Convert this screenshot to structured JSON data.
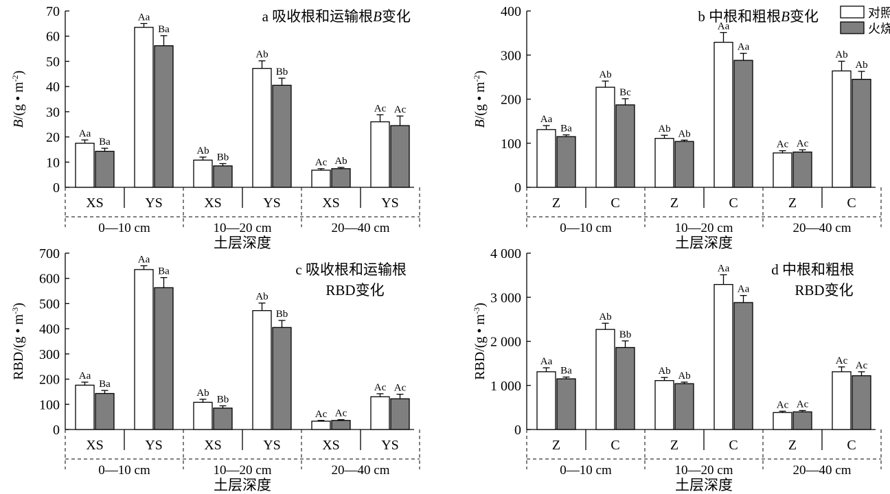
{
  "legend": {
    "control": "对照",
    "fire": "火烧"
  },
  "chart_data": [
    {
      "id": "a",
      "type": "bar",
      "title": "a 吸收根和运输根B变化",
      "title_parts": [
        [
          "a 吸收根和运输根",
          false
        ],
        [
          "B",
          true
        ],
        [
          "变化",
          false
        ]
      ],
      "ylabel_parts": [
        [
          "B",
          true
        ],
        [
          "/(g • m",
          false
        ],
        [
          "-2",
          "sup"
        ],
        [
          ")",
          false
        ]
      ],
      "xlabel": "土层深度",
      "ylim": [
        0,
        70
      ],
      "yticks": [
        0,
        10,
        20,
        30,
        40,
        50,
        60,
        70
      ],
      "ytick_labels": [
        "0",
        "10",
        "20",
        "30",
        "40",
        "50",
        "60",
        "70"
      ],
      "groups": [
        "0—10 cm",
        "10—20 cm",
        "20—40 cm"
      ],
      "categories": [
        "XS",
        "YS",
        "XS",
        "YS",
        "XS",
        "YS"
      ],
      "series": [
        {
          "name": "对照",
          "values": [
            17.5,
            63.5,
            10.8,
            47.2,
            6.8,
            26.0
          ],
          "errors": [
            1.3,
            1.5,
            1.2,
            3.0,
            0.6,
            2.8
          ],
          "labels": [
            "Aa",
            "Aa",
            "Ab",
            "Ab",
            "Ac",
            "Ac"
          ]
        },
        {
          "name": "火烧",
          "values": [
            14.3,
            56.2,
            8.5,
            40.5,
            7.4,
            24.5
          ],
          "errors": [
            1.2,
            4.0,
            0.9,
            2.8,
            0.5,
            3.8
          ],
          "labels": [
            "Ba",
            "Ba",
            "Bb",
            "Bb",
            "Ab",
            "Ac"
          ]
        }
      ],
      "legend": false
    },
    {
      "id": "b",
      "type": "bar",
      "title": "b 中根和粗根B变化",
      "title_parts": [
        [
          "b 中根和粗根",
          false
        ],
        [
          "B",
          true
        ],
        [
          "变化",
          false
        ]
      ],
      "ylabel_parts": [
        [
          "B",
          true
        ],
        [
          "/(g • m",
          false
        ],
        [
          "-2",
          "sup"
        ],
        [
          ")",
          false
        ]
      ],
      "xlabel": "土层深度",
      "ylim": [
        0,
        400
      ],
      "yticks": [
        0,
        100,
        200,
        300,
        400
      ],
      "ytick_labels": [
        "0",
        "100",
        "200",
        "300",
        "400"
      ],
      "groups": [
        "0—10 cm",
        "10—20 cm",
        "20—40 cm"
      ],
      "categories": [
        "Z",
        "C",
        "Z",
        "C",
        "Z",
        "C"
      ],
      "series": [
        {
          "name": "对照",
          "values": [
            131,
            227,
            111,
            329,
            78,
            264
          ],
          "errors": [
            9,
            14,
            7,
            22,
            5,
            22
          ],
          "labels": [
            "Aa",
            "Ab",
            "Ab",
            "Aa",
            "Ac",
            "Ab"
          ]
        },
        {
          "name": "火烧",
          "values": [
            115,
            187,
            104,
            288,
            80,
            245
          ],
          "errors": [
            4,
            14,
            3,
            16,
            5,
            18
          ],
          "labels": [
            "Ba",
            "Bc",
            "Ab",
            "Aa",
            "Ac",
            "Ab"
          ]
        }
      ],
      "legend": true
    },
    {
      "id": "c",
      "type": "bar",
      "title": "c 吸收根和运输根 RBD变化",
      "title_lines": [
        "c 吸收根和运输根",
        "RBD变化"
      ],
      "ylabel_parts": [
        [
          "RBD/(g • m",
          false
        ],
        [
          "-3",
          "sup"
        ],
        [
          ")",
          false
        ]
      ],
      "xlabel": "土层深度",
      "ylim": [
        0,
        700
      ],
      "yticks": [
        0,
        100,
        200,
        300,
        400,
        500,
        600,
        700
      ],
      "ytick_labels": [
        "0",
        "100",
        "200",
        "300",
        "400",
        "500",
        "600",
        "700"
      ],
      "groups": [
        "0—10 cm",
        "10—20 cm",
        "20—40 cm"
      ],
      "categories": [
        "XS",
        "YS",
        "XS",
        "YS",
        "XS",
        "YS"
      ],
      "series": [
        {
          "name": "对照",
          "values": [
            176,
            635,
            108,
            472,
            33,
            130
          ],
          "errors": [
            12,
            15,
            12,
            30,
            3,
            12
          ],
          "labels": [
            "Aa",
            "Aa",
            "Ab",
            "Ab",
            "Ac",
            "Ac"
          ]
        },
        {
          "name": "火烧",
          "values": [
            143,
            563,
            85,
            405,
            36,
            122
          ],
          "errors": [
            12,
            40,
            9,
            28,
            3,
            18
          ],
          "labels": [
            "Ba",
            "Ba",
            "Bb",
            "Bb",
            "Ac",
            "Ac"
          ]
        }
      ],
      "legend": false
    },
    {
      "id": "d",
      "type": "bar",
      "title": "d 中根和粗根 RBD变化",
      "title_lines": [
        "d 中根和粗根",
        "RBD变化"
      ],
      "ylabel_parts": [
        [
          "RBD/(g • m",
          false
        ],
        [
          "-3",
          "sup"
        ],
        [
          ")",
          false
        ]
      ],
      "xlabel": "土层深度",
      "ylim": [
        0,
        4000
      ],
      "yticks": [
        0,
        1000,
        2000,
        3000,
        4000
      ],
      "ytick_labels": [
        "0",
        "1 000",
        "2 000",
        "3 000",
        "4 000"
      ],
      "groups": [
        "0—10 cm",
        "10—20 cm",
        "20—40 cm"
      ],
      "categories": [
        "Z",
        "C",
        "Z",
        "C",
        "Z",
        "C"
      ],
      "series": [
        {
          "name": "对照",
          "values": [
            1310,
            2270,
            1110,
            3290,
            385,
            1310
          ],
          "errors": [
            90,
            140,
            70,
            220,
            30,
            110
          ],
          "labels": [
            "Aa",
            "Ab",
            "Ab",
            "Aa",
            "Ac",
            "Ac"
          ]
        },
        {
          "name": "火烧",
          "values": [
            1150,
            1860,
            1040,
            2880,
            400,
            1220
          ],
          "errors": [
            40,
            150,
            35,
            160,
            30,
            90
          ],
          "labels": [
            "Ba",
            "Bb",
            "Ab",
            "Aa",
            "Ac",
            "Ac"
          ]
        }
      ],
      "legend": false
    }
  ]
}
